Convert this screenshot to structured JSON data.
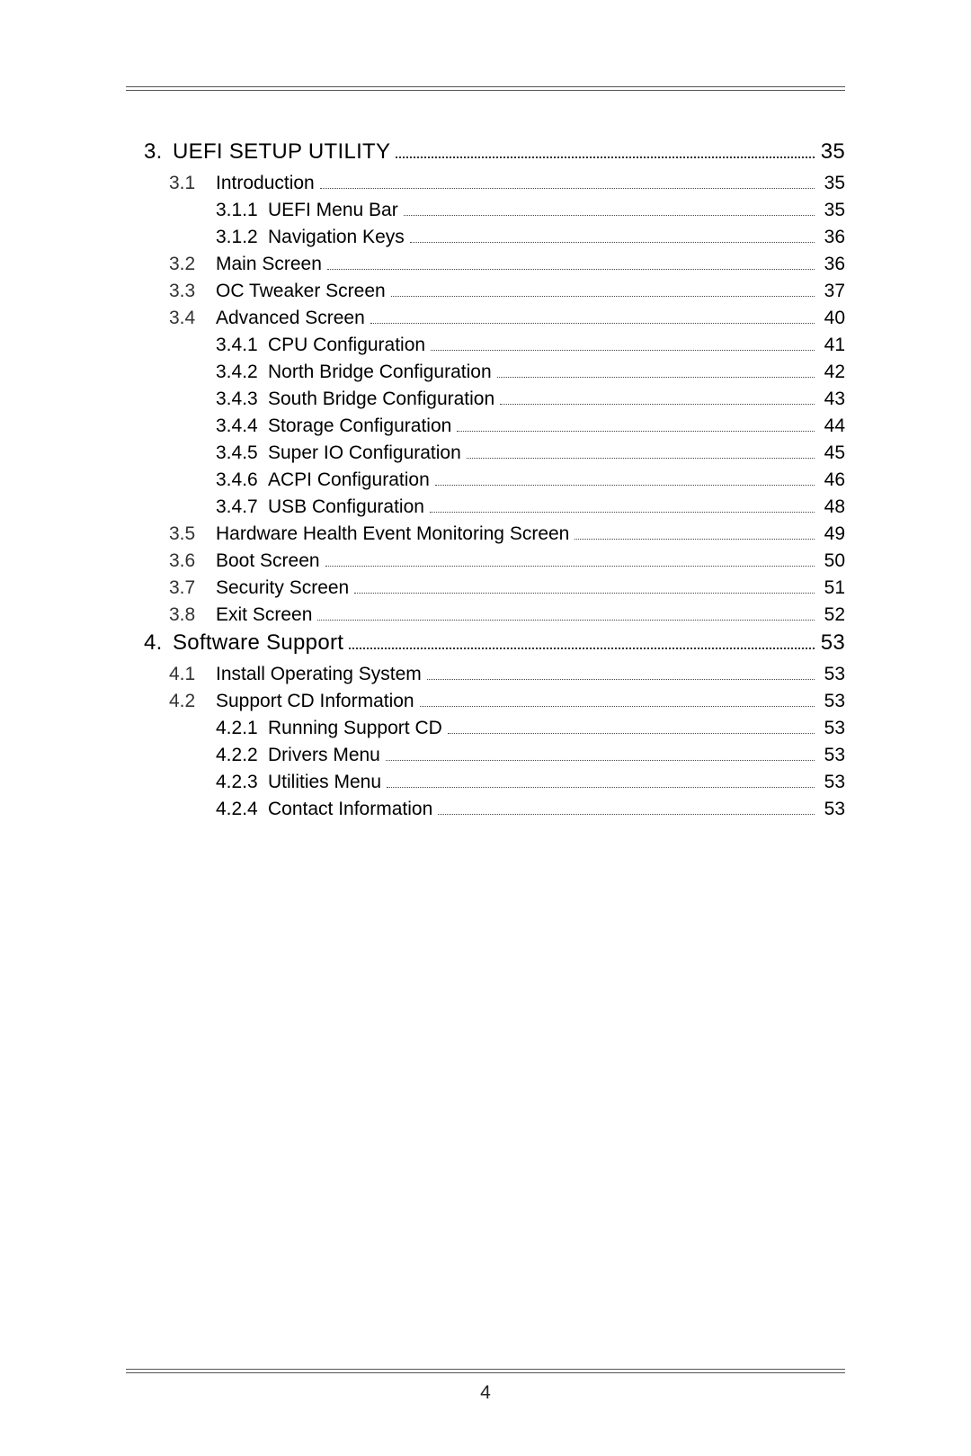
{
  "page": {
    "number": "4",
    "text_color": "#000000",
    "background_color": "#ffffff",
    "rule_color": "#555555",
    "dot_color": "#444444"
  },
  "toc": [
    {
      "level": "chapter",
      "num": "3.",
      "title": "UEFI SETUP UTILITY",
      "page": "35",
      "children": [
        {
          "level": "section",
          "num": "3.1",
          "title": "Introduction",
          "page": "35",
          "children": [
            {
              "level": "subsection",
              "num": "3.1.1",
              "title": "UEFI Menu Bar",
              "page": "35"
            },
            {
              "level": "subsection",
              "num": "3.1.2",
              "title": "Navigation Keys",
              "page": "36"
            }
          ]
        },
        {
          "level": "section",
          "num": "3.2",
          "title": "Main Screen",
          "page": "36"
        },
        {
          "level": "section",
          "num": "3.3",
          "title": "OC Tweaker Screen",
          "page": "37"
        },
        {
          "level": "section",
          "num": "3.4",
          "title": "Advanced Screen",
          "page": "40",
          "children": [
            {
              "level": "subsection",
              "num": "3.4.1",
              "title": "CPU Configuration",
              "page": "41"
            },
            {
              "level": "subsection",
              "num": "3.4.2",
              "title": "North Bridge Configuration",
              "page": "42"
            },
            {
              "level": "subsection",
              "num": "3.4.3",
              "title": "South Bridge Configuration",
              "page": "43"
            },
            {
              "level": "subsection",
              "num": "3.4.4",
              "title": "Storage Configuration",
              "page": "44"
            },
            {
              "level": "subsection",
              "num": "3.4.5",
              "title": "Super IO Configuration",
              "page": "45"
            },
            {
              "level": "subsection",
              "num": "3.4.6",
              "title": "ACPI Configuration",
              "page": "46"
            },
            {
              "level": "subsection",
              "num": "3.4.7",
              "title": "USB Configuration",
              "page": "48"
            }
          ]
        },
        {
          "level": "section",
          "num": "3.5",
          "title": "Hardware Health Event Monitoring Screen",
          "page": "49"
        },
        {
          "level": "section",
          "num": "3.6",
          "title": "Boot Screen",
          "page": "50"
        },
        {
          "level": "section",
          "num": "3.7",
          "title": "Security Screen",
          "page": "51"
        },
        {
          "level": "section",
          "num": "3.8",
          "title": "Exit Screen",
          "page": "52"
        }
      ]
    },
    {
      "level": "chapter",
      "num": "4.",
      "title": "Software Support",
      "page": "53",
      "children": [
        {
          "level": "section",
          "num": "4.1",
          "title": "Install Operating System",
          "page": "53"
        },
        {
          "level": "section",
          "num": "4.2",
          "title": "Support CD Information",
          "page": "53",
          "children": [
            {
              "level": "subsection",
              "num": "4.2.1",
              "title": "Running Support CD",
              "page": "53"
            },
            {
              "level": "subsection",
              "num": "4.2.2",
              "title": "Drivers Menu",
              "page": "53"
            },
            {
              "level": "subsection",
              "num": "4.2.3",
              "title": "Utilities Menu",
              "page": "53"
            },
            {
              "level": "subsection",
              "num": "4.2.4",
              "title": "Contact Information",
              "page": "53"
            }
          ]
        }
      ]
    }
  ]
}
